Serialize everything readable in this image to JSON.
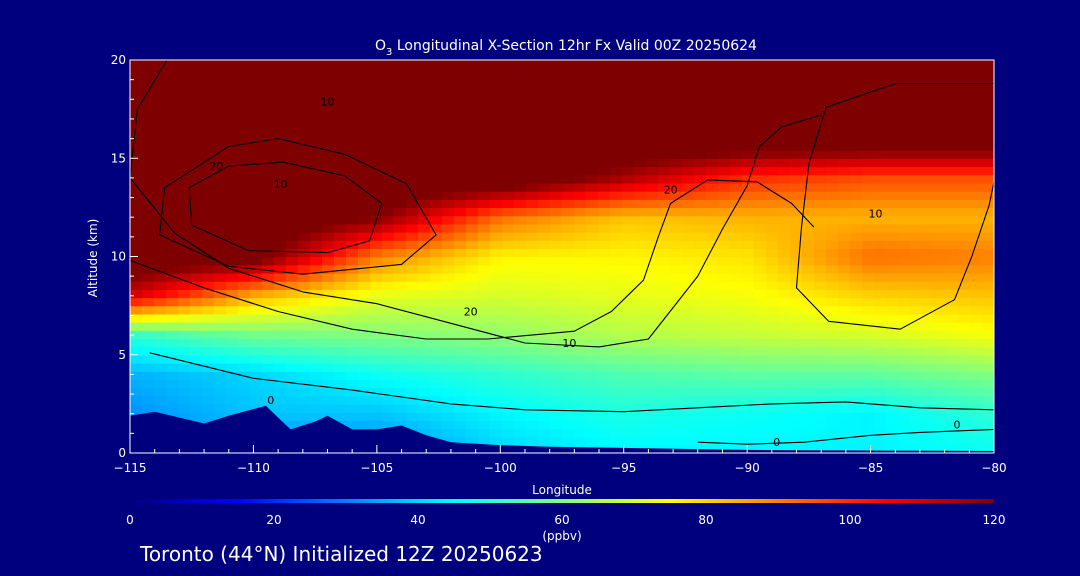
{
  "chart_data": {
    "type": "heatmap",
    "title": {
      "species": "O",
      "subscript": "3",
      "rest": " Longitudinal X-Section 12hr  Fx Valid 00Z 20250624"
    },
    "xlabel": "Longitude",
    "ylabel": "Altitude (km)",
    "xlim": [
      -115,
      -80
    ],
    "ylim": [
      0,
      20
    ],
    "x_ticks": [
      -115,
      -110,
      -105,
      -100,
      -95,
      -90,
      -85,
      -80
    ],
    "x_tick_labels": [
      "−115",
      "−110",
      "−105",
      "−100",
      "−95",
      "−90",
      "−85",
      "−80"
    ],
    "y_ticks": [
      0,
      5,
      10,
      15,
      20
    ],
    "y_tick_labels": [
      "0",
      "5",
      "10",
      "15",
      "20"
    ],
    "colorbar": {
      "min": 0,
      "max": 120,
      "ticks": [
        0,
        20,
        40,
        60,
        80,
        100,
        120
      ],
      "tick_labels": [
        "0",
        "20",
        "40",
        "60",
        "80",
        "100",
        "120"
      ],
      "unit_label": "(ppbv)",
      "colors": [
        "#00007f",
        "#0000ff",
        "#0080ff",
        "#00ffff",
        "#80ff80",
        "#ffff00",
        "#ff8000",
        "#ff0000",
        "#7f0000"
      ]
    },
    "ozone_field": {
      "lon": [
        -115,
        -110,
        -105,
        -100,
        -95,
        -90,
        -85,
        -80
      ],
      "levels_km": [
        0,
        2,
        4,
        6,
        8,
        10,
        12,
        14,
        16,
        18,
        20
      ],
      "ppbv_by_level": [
        [
          30,
          30,
          30,
          40,
          44,
          44,
          44,
          46
        ],
        [
          32,
          38,
          38,
          44,
          48,
          46,
          44,
          50
        ],
        [
          36,
          40,
          46,
          50,
          54,
          56,
          56,
          60
        ],
        [
          50,
          58,
          60,
          62,
          66,
          68,
          70,
          74
        ],
        [
          110,
          84,
          72,
          70,
          72,
          74,
          80,
          82
        ],
        [
          130,
          125,
          90,
          76,
          76,
          78,
          92,
          90
        ],
        [
          130,
          130,
          120,
          92,
          82,
          84,
          84,
          84
        ],
        [
          130,
          130,
          130,
          130,
          115,
          100,
          96,
          96
        ],
        [
          130,
          130,
          130,
          130,
          130,
          130,
          130,
          130
        ],
        [
          130,
          130,
          130,
          130,
          130,
          130,
          130,
          130
        ],
        [
          130,
          130,
          130,
          130,
          130,
          130,
          130,
          130
        ]
      ]
    },
    "terrain_km": {
      "lon": [
        -115,
        -114,
        -112,
        -111,
        -109.5,
        -108.5,
        -107.5,
        -107,
        -106,
        -105,
        -104,
        -103,
        -102,
        -100,
        -98,
        -96,
        -95,
        -94,
        -92,
        -90,
        -88,
        -86,
        -84,
        -82,
        -80
      ],
      "height": [
        1.9,
        2.1,
        1.5,
        1.9,
        2.4,
        1.2,
        1.6,
        1.9,
        1.2,
        1.2,
        1.4,
        0.9,
        0.55,
        0.4,
        0.32,
        0.28,
        0.26,
        0.24,
        0.2,
        0.16,
        0.14,
        0.13,
        0.12,
        0.11,
        0.1
      ]
    },
    "contours": [
      {
        "label": "10",
        "points": [
          [
            -113.5,
            20
          ],
          [
            -114.7,
            17.5
          ],
          [
            -115,
            14
          ],
          [
            -113.2,
            11.2
          ],
          [
            -111,
            9.4
          ],
          [
            -108,
            8.2
          ],
          [
            -105,
            7.6
          ],
          [
            -102,
            6.6
          ],
          [
            -99,
            5.6
          ],
          [
            -96,
            5.4
          ],
          [
            -94,
            5.8
          ],
          [
            -93,
            7.4
          ],
          [
            -92,
            9
          ],
          [
            -91,
            11.4
          ],
          [
            -90,
            13.6
          ],
          [
            -89.5,
            15.6
          ],
          [
            -88.6,
            16.6
          ],
          [
            -87,
            17.2
          ]
        ],
        "labels": [
          {
            "text": "10",
            "at": [
              -107,
              17.9
            ]
          },
          {
            "text": "10",
            "at": [
              -97.2,
              5.6
            ]
          }
        ]
      },
      {
        "label": "20",
        "points": [
          [
            -115,
            9.8
          ],
          [
            -112,
            8.4
          ],
          [
            -109,
            7.2
          ],
          [
            -106,
            6.3
          ],
          [
            -103,
            5.8
          ],
          [
            -100.5,
            5.8
          ],
          [
            -97,
            6.2
          ],
          [
            -95.5,
            7.2
          ],
          [
            -94.2,
            8.8
          ],
          [
            -93.6,
            11
          ],
          [
            -93.1,
            12.7
          ],
          [
            -91.6,
            13.9
          ],
          [
            -89.6,
            13.8
          ],
          [
            -88.2,
            12.7
          ],
          [
            -87.3,
            11.5
          ]
        ],
        "labels": [
          {
            "text": "20",
            "at": [
              -101.2,
              7.2
            ]
          },
          {
            "text": "20",
            "at": [
              -93.1,
              13.4
            ]
          }
        ]
      },
      {
        "label": "20",
        "points": [
          [
            -111,
            14.6
          ],
          [
            -112.6,
            13.5
          ],
          [
            -112.5,
            11.6
          ],
          [
            -110.2,
            10.3
          ],
          [
            -107,
            10.2
          ],
          [
            -105.3,
            10.8
          ],
          [
            -104.8,
            12.7
          ],
          [
            -106.3,
            14.1
          ],
          [
            -108.8,
            14.8
          ],
          [
            -111,
            14.6
          ]
        ],
        "labels": [
          {
            "text": "20",
            "at": [
              -111.5,
              14.6
            ]
          }
        ]
      },
      {
        "label": "10",
        "points": [
          [
            -109,
            16
          ],
          [
            -111,
            15.6
          ],
          [
            -113.6,
            13.5
          ],
          [
            -113.8,
            11.1
          ],
          [
            -111,
            9.5
          ],
          [
            -108,
            9.1
          ],
          [
            -104,
            9.6
          ],
          [
            -102.6,
            11.1
          ],
          [
            -103.8,
            13.7
          ],
          [
            -106.3,
            15.2
          ],
          [
            -109,
            16
          ]
        ],
        "labels": [
          {
            "text": "10",
            "at": [
              -108.9,
              13.7
            ]
          }
        ]
      },
      {
        "label": "10",
        "points": [
          [
            -80,
            18.8
          ],
          [
            -84,
            18.8
          ],
          [
            -86.8,
            17.6
          ],
          [
            -87.5,
            14.7
          ],
          [
            -87.8,
            11.5
          ],
          [
            -88,
            8.4
          ],
          [
            -86.7,
            6.7
          ],
          [
            -83.8,
            6.3
          ],
          [
            -81.6,
            7.8
          ],
          [
            -80.9,
            10
          ],
          [
            -80.2,
            12.6
          ],
          [
            -80,
            13.8
          ]
        ],
        "labels": [
          {
            "text": "10",
            "at": [
              -84.8,
              12.2
            ]
          }
        ]
      },
      {
        "label": "0",
        "points": [
          [
            -114.2,
            5.1
          ],
          [
            -110,
            3.8
          ],
          [
            -106,
            3.2
          ],
          [
            -102,
            2.5
          ],
          [
            -99,
            2.2
          ],
          [
            -95,
            2.1
          ],
          [
            -92,
            2.3
          ],
          [
            -89,
            2.5
          ],
          [
            -86,
            2.6
          ],
          [
            -83,
            2.3
          ],
          [
            -80,
            2.2
          ]
        ],
        "labels": [
          {
            "text": "0",
            "at": [
              -109.3,
              2.7
            ]
          }
        ]
      },
      {
        "label": "0",
        "points": [
          [
            -80,
            1.2
          ],
          [
            -83,
            1.05
          ],
          [
            -85,
            0.9
          ],
          [
            -87.7,
            0.55
          ],
          [
            -90,
            0.45
          ],
          [
            -92,
            0.55
          ]
        ],
        "labels": [
          {
            "text": "0",
            "at": [
              -88.8,
              0.55
            ]
          },
          {
            "text": "0",
            "at": [
              -81.5,
              1.45
            ]
          }
        ]
      }
    ]
  },
  "footer": {
    "text": "Toronto (44°N) Initialized 12Z 20250623"
  }
}
